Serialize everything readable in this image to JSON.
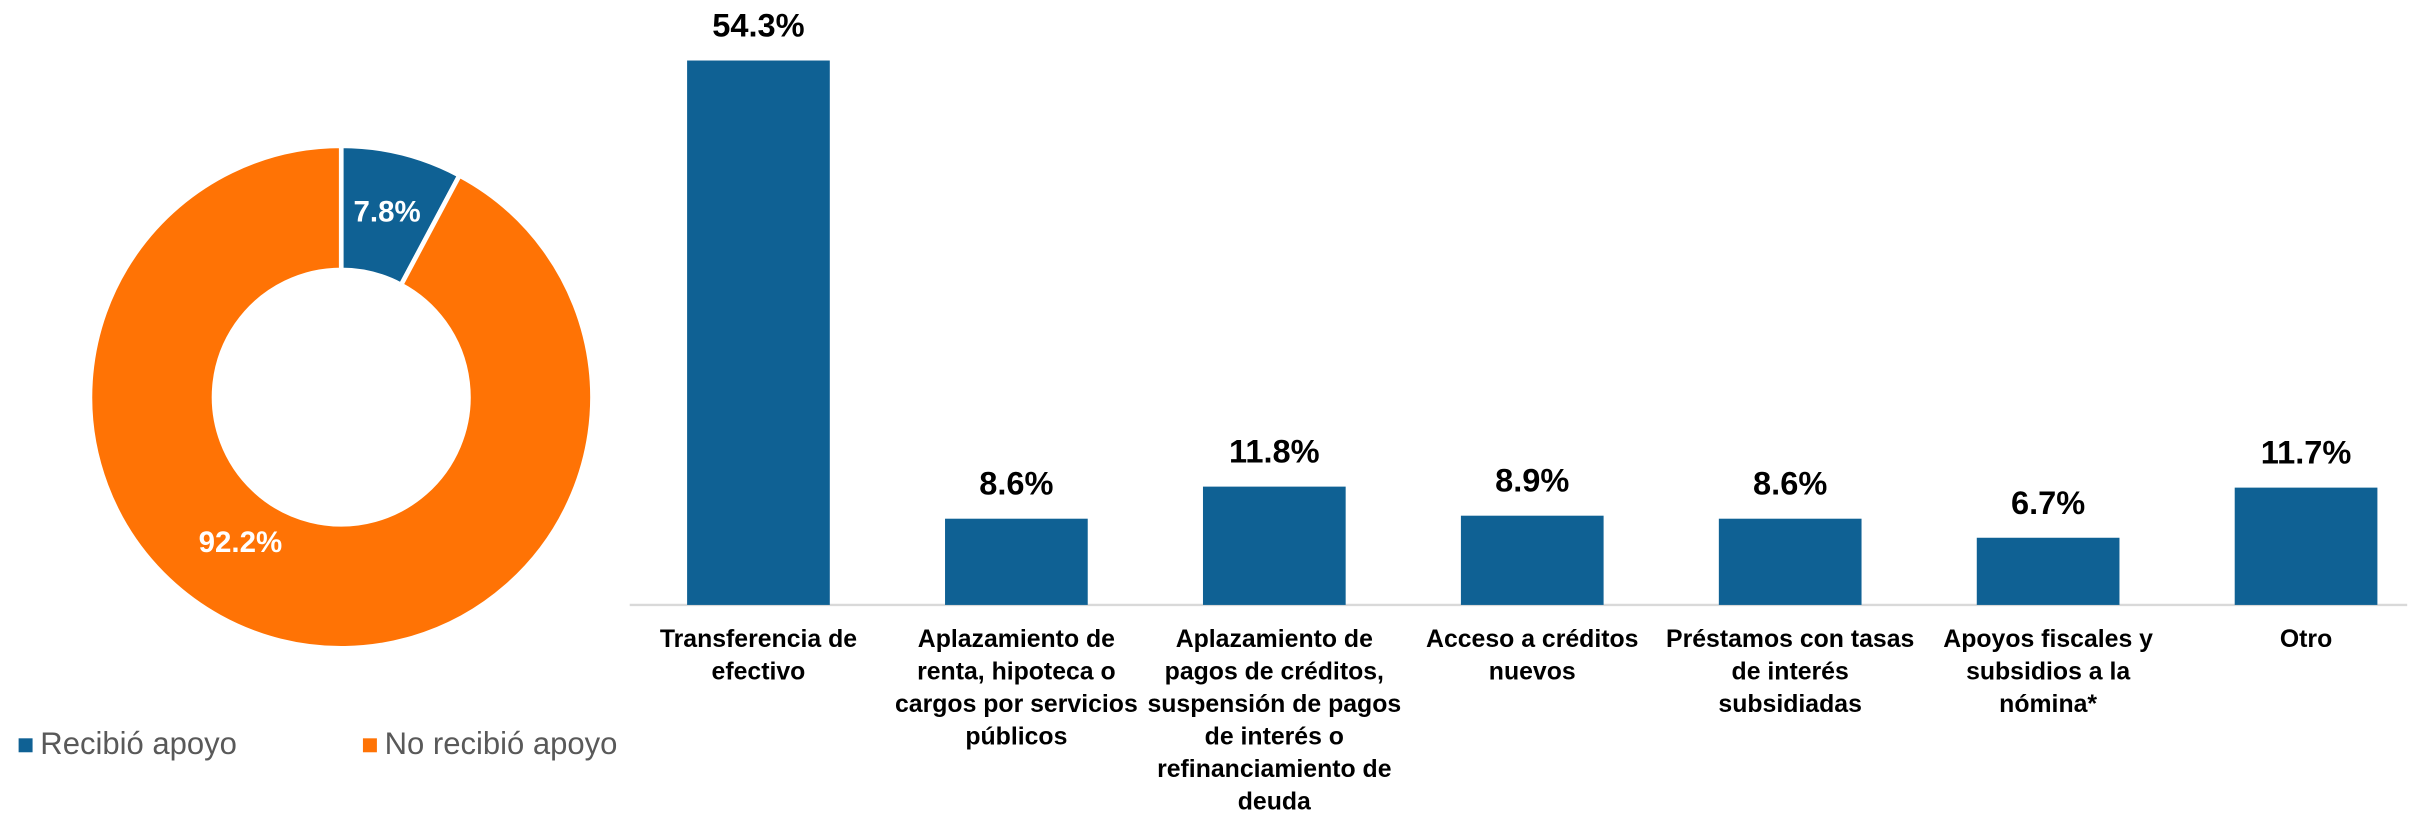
{
  "chart_data": [
    {
      "type": "pie",
      "categories": [
        "Recibió apoyo",
        "No recibió apoyo"
      ],
      "values": [
        7.8,
        92.2
      ],
      "value_labels": [
        "7.8%",
        "92.2%"
      ],
      "colors": [
        "#0f6194",
        "#ff7305"
      ],
      "legend": "bottom"
    },
    {
      "type": "bar",
      "categories": [
        "Transferencia de efectivo",
        "Aplazamiento de renta, hipoteca o cargos por servicios públicos",
        "Aplazamiento de pagos de créditos, suspensión de pagos de interés o refinanciamiento de deuda",
        "Acceso a créditos nuevos",
        "Préstamos con tasas de interés subsidiadas",
        "Apoyos fiscales y subsidios a la nómina*",
        "Otro"
      ],
      "values": [
        54.3,
        8.6,
        11.8,
        8.9,
        8.6,
        6.7,
        11.7
      ],
      "value_labels": [
        "54.3%",
        "8.6%",
        "11.8%",
        "8.9%",
        "8.6%",
        "6.7%",
        "11.7%"
      ],
      "color": "#0f6194"
    }
  ]
}
